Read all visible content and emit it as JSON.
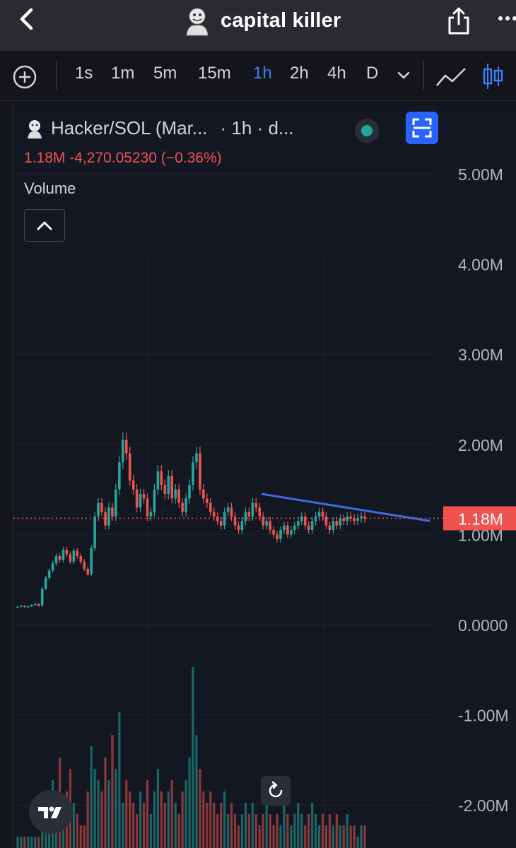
{
  "header": {
    "title": "capital killer",
    "icons": {
      "back": "chevron-left-icon",
      "share": "share-icon",
      "more": "more-dots-icon",
      "avatar": "avatar"
    }
  },
  "toolbar": {
    "intervals": [
      {
        "label": "1s",
        "active": false
      },
      {
        "label": "1m",
        "active": false
      },
      {
        "label": "5m",
        "active": false
      },
      {
        "label": "15m",
        "active": false
      },
      {
        "label": "1h",
        "active": true
      },
      {
        "label": "2h",
        "active": false
      },
      {
        "label": "4h",
        "active": false
      },
      {
        "label": "D",
        "active": false
      }
    ],
    "icons": [
      "plus-circle-icon",
      "chevron-down-icon",
      "line-chart-icon",
      "candlestick-icon"
    ],
    "accent": "#3d7cf5"
  },
  "legend": {
    "symbol": "Hacker/SOL (Mar...",
    "interval": "· 1h · d...",
    "ohlc_line": "1.18M  -4,270.05230 (−0.36%)",
    "volume_label": "Volume",
    "status_color": "#26a69a"
  },
  "price_label": "1.18M",
  "colors": {
    "up": "#26a69a",
    "down": "#ef5350",
    "trendline": "#3f6ae0",
    "background": "#131722"
  },
  "chart_data": {
    "type": "candlestick",
    "symbol": "Hacker/SOL",
    "interval": "1h",
    "y_axis_ticks": [
      "5.00M",
      "4.00M",
      "3.00M",
      "2.00M",
      "1.00M",
      "0.0000",
      "-1.00M",
      "-2.00M"
    ],
    "ylim": [
      -2000000,
      5000000
    ],
    "last_price": 1180000,
    "trendline": {
      "start": [
        70,
        1450000
      ],
      "end": [
        118,
        1150000
      ]
    },
    "series": [
      {
        "name": "price",
        "values": [
          200000,
          210000,
          195000,
          205000,
          220000,
          230000,
          210000,
          400000,
          520000,
          600000,
          680000,
          760000,
          720000,
          830000,
          780000,
          700000,
          820000,
          760000,
          700000,
          620000,
          560000,
          850000,
          1200000,
          1350000,
          1250000,
          1100000,
          1300000,
          1200000,
          1500000,
          1800000,
          2050000,
          1900000,
          1600000,
          1500000,
          1300000,
          1450000,
          1400000,
          1200000,
          1250000,
          1500000,
          1700000,
          1550000,
          1450000,
          1650000,
          1400000,
          1500000,
          1350000,
          1250000,
          1400000,
          1550000,
          1800000,
          1900000,
          1500000,
          1400000,
          1350000,
          1250000,
          1200000,
          1150000,
          1100000,
          1250000,
          1300000,
          1200000,
          1100000,
          1050000,
          1150000,
          1250000,
          1200000,
          1350000,
          1300000,
          1200000,
          1100000,
          1150000,
          1050000,
          1000000,
          950000,
          1050000,
          1100000,
          1000000,
          1050000,
          1100000,
          1150000,
          1200000,
          1100000,
          1050000,
          1150000,
          1200000,
          1250000,
          1200000,
          1100000,
          1050000,
          1150000,
          1100000,
          1180000,
          1150000,
          1200000,
          1180000,
          1150000,
          1180000,
          1200000,
          1180000
        ]
      },
      {
        "name": "volume",
        "values": [
          1,
          1,
          1,
          1,
          1,
          1,
          1,
          2,
          3,
          5,
          6,
          4,
          8,
          3,
          5,
          7,
          4,
          3,
          2,
          2,
          5,
          9,
          7,
          6,
          5,
          8,
          6,
          10,
          7,
          12,
          4,
          6,
          5,
          4,
          3,
          5,
          4,
          6,
          3,
          5,
          7,
          5,
          4,
          5,
          6,
          4,
          3,
          5,
          6,
          8,
          16,
          10,
          7,
          5,
          4,
          5,
          4,
          3,
          4,
          5,
          3,
          4,
          3,
          2,
          3,
          4,
          3,
          4,
          3,
          2,
          3,
          4,
          3,
          2,
          3,
          2,
          4,
          3,
          2,
          3,
          4,
          3,
          2,
          3,
          4,
          3,
          2,
          3,
          2,
          3,
          2,
          3,
          2,
          2,
          3,
          2,
          2,
          1,
          2,
          2
        ]
      }
    ]
  }
}
